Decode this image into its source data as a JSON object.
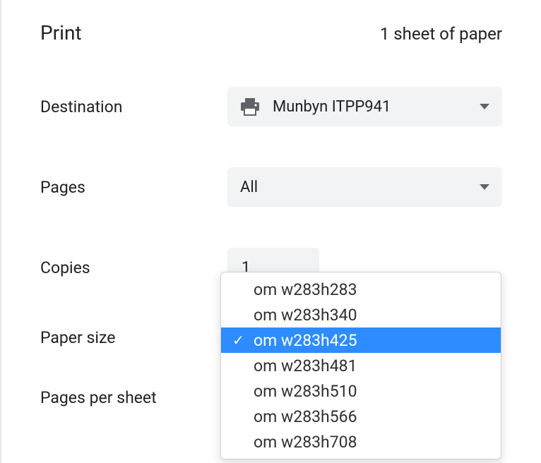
{
  "header": {
    "title": "Print",
    "sheet_count": "1 sheet of paper"
  },
  "destination": {
    "label": "Destination",
    "value": "Munbyn ITPP941"
  },
  "pages": {
    "label": "Pages",
    "value": "All"
  },
  "copies": {
    "label": "Copies",
    "value": "1"
  },
  "paper_size": {
    "label": "Paper size",
    "options": [
      {
        "label": "om w283h283",
        "selected": false
      },
      {
        "label": "om w283h340",
        "selected": false
      },
      {
        "label": "om w283h425",
        "selected": true
      },
      {
        "label": "om w283h481",
        "selected": false
      },
      {
        "label": "om w283h510",
        "selected": false
      },
      {
        "label": "om w283h566",
        "selected": false
      },
      {
        "label": "om w283h708",
        "selected": false
      }
    ]
  },
  "pages_per_sheet": {
    "label": "Pages per sheet"
  }
}
